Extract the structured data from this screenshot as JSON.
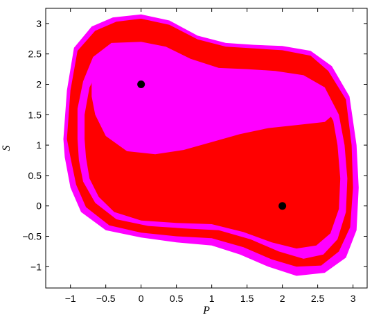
{
  "chart_data": {
    "type": "heatmap",
    "title": "",
    "xlabel": "P",
    "ylabel": "S",
    "xlim": [
      -1.35,
      3.2
    ],
    "ylim": [
      -1.35,
      3.25
    ],
    "x_ticks": [
      "−1",
      "−0.5",
      "0",
      "0.5",
      "1",
      "1.5",
      "2",
      "2.5",
      "3"
    ],
    "x_tick_values": [
      -1,
      -0.5,
      0,
      0.5,
      1,
      1.5,
      2,
      2.5,
      3
    ],
    "y_ticks": [
      "−1",
      "−0.5",
      "0",
      "0.5",
      "1",
      "1.5",
      "2",
      "2.5",
      "3"
    ],
    "y_tick_values": [
      -1,
      -0.5,
      0,
      0.5,
      1,
      1.5,
      2,
      2.5,
      3
    ],
    "grid": false,
    "colors": {
      "basin_a": "#ff00ff",
      "basin_b": "#ff0000",
      "points": "#000000"
    },
    "regions": [
      {
        "color": "#ff00ff",
        "outline": [
          [
            -1.1,
            1.1
          ],
          [
            -1.05,
            1.9
          ],
          [
            -0.95,
            2.6
          ],
          [
            -0.7,
            2.95
          ],
          [
            -0.4,
            3.1
          ],
          [
            0.0,
            3.15
          ],
          [
            0.4,
            3.05
          ],
          [
            0.8,
            2.8
          ],
          [
            1.2,
            2.68
          ],
          [
            1.6,
            2.65
          ],
          [
            2.0,
            2.63
          ],
          [
            2.4,
            2.55
          ],
          [
            2.7,
            2.3
          ],
          [
            2.95,
            1.8
          ],
          [
            3.05,
            1.0
          ],
          [
            3.08,
            0.3
          ],
          [
            3.05,
            -0.4
          ],
          [
            2.9,
            -0.85
          ],
          [
            2.6,
            -1.1
          ],
          [
            2.2,
            -1.15
          ],
          [
            1.8,
            -1.0
          ],
          [
            1.4,
            -0.8
          ],
          [
            1.0,
            -0.65
          ],
          [
            0.5,
            -0.6
          ],
          [
            0.0,
            -0.52
          ],
          [
            -0.5,
            -0.4
          ],
          [
            -0.85,
            -0.1
          ],
          [
            -1.0,
            0.3
          ],
          [
            -1.08,
            0.8
          ]
        ]
      },
      {
        "color": "#ff0000",
        "outline": [
          [
            -1.05,
            1.1
          ],
          [
            -1.0,
            1.9
          ],
          [
            -0.9,
            2.55
          ],
          [
            -0.65,
            2.88
          ],
          [
            -0.35,
            3.03
          ],
          [
            0.0,
            3.08
          ],
          [
            0.4,
            2.98
          ],
          [
            0.8,
            2.74
          ],
          [
            1.2,
            2.62
          ],
          [
            1.6,
            2.59
          ],
          [
            2.0,
            2.56
          ],
          [
            2.4,
            2.47
          ],
          [
            2.65,
            2.22
          ],
          [
            2.9,
            1.75
          ],
          [
            2.98,
            1.0
          ],
          [
            3.0,
            0.3
          ],
          [
            2.96,
            -0.35
          ],
          [
            2.8,
            -0.75
          ],
          [
            2.55,
            -0.98
          ],
          [
            2.2,
            -1.0
          ],
          [
            1.85,
            -0.88
          ],
          [
            1.45,
            -0.68
          ],
          [
            1.0,
            -0.53
          ],
          [
            0.5,
            -0.5
          ],
          [
            0.0,
            -0.44
          ],
          [
            -0.45,
            -0.32
          ],
          [
            -0.78,
            -0.02
          ],
          [
            -0.92,
            0.35
          ],
          [
            -1.0,
            0.8
          ]
        ]
      },
      {
        "color": "#ff00ff",
        "outline": [
          [
            -0.9,
            1.1
          ],
          [
            -0.9,
            1.6
          ],
          [
            -0.82,
            2.05
          ],
          [
            -0.68,
            2.45
          ],
          [
            -0.42,
            2.68
          ],
          [
            0.0,
            2.7
          ],
          [
            0.35,
            2.62
          ],
          [
            0.7,
            2.42
          ],
          [
            1.1,
            2.27
          ],
          [
            1.5,
            2.25
          ],
          [
            1.9,
            2.22
          ],
          [
            2.3,
            2.15
          ],
          [
            2.6,
            1.95
          ],
          [
            2.8,
            1.5
          ],
          [
            2.88,
            1.0
          ],
          [
            2.92,
            0.45
          ],
          [
            2.9,
            -0.1
          ],
          [
            2.78,
            -0.55
          ],
          [
            2.58,
            -0.8
          ],
          [
            2.3,
            -0.87
          ],
          [
            1.95,
            -0.75
          ],
          [
            1.55,
            -0.55
          ],
          [
            1.1,
            -0.4
          ],
          [
            0.6,
            -0.37
          ],
          [
            0.1,
            -0.33
          ],
          [
            -0.35,
            -0.22
          ],
          [
            -0.65,
            0.05
          ],
          [
            -0.82,
            0.4
          ],
          [
            -0.88,
            0.75
          ]
        ]
      },
      {
        "color": "#ff0000",
        "outline": [
          [
            -0.8,
            1.1
          ],
          [
            -0.8,
            1.5
          ],
          [
            -0.73,
            1.95
          ],
          [
            -0.58,
            2.28
          ],
          [
            -0.3,
            2.5
          ],
          [
            0.0,
            2.52
          ],
          [
            0.35,
            2.43
          ],
          [
            0.7,
            2.25
          ],
          [
            1.1,
            2.1
          ],
          [
            1.5,
            2.08
          ],
          [
            1.9,
            2.05
          ],
          [
            2.3,
            1.96
          ],
          [
            2.55,
            1.75
          ],
          [
            2.72,
            1.4
          ],
          [
            2.78,
            1.0
          ],
          [
            2.82,
            0.45
          ],
          [
            2.8,
            -0.05
          ],
          [
            2.68,
            -0.45
          ],
          [
            2.48,
            -0.65
          ],
          [
            2.2,
            -0.7
          ],
          [
            1.85,
            -0.6
          ],
          [
            1.45,
            -0.43
          ],
          [
            1.0,
            -0.3
          ],
          [
            0.5,
            -0.28
          ],
          [
            0.0,
            -0.24
          ],
          [
            -0.38,
            -0.1
          ],
          [
            -0.6,
            0.15
          ],
          [
            -0.73,
            0.45
          ],
          [
            -0.78,
            0.8
          ]
        ]
      },
      {
        "color": "#ff00ff",
        "outline": [
          [
            -0.7,
            2.0
          ],
          [
            -0.65,
            2.3
          ],
          [
            -0.45,
            2.53
          ],
          [
            -0.1,
            2.6
          ],
          [
            0.3,
            2.55
          ],
          [
            0.7,
            2.3
          ],
          [
            1.1,
            2.2
          ],
          [
            1.6,
            2.2
          ],
          [
            2.0,
            2.15
          ],
          [
            2.4,
            2.05
          ],
          [
            2.62,
            1.8
          ],
          [
            2.72,
            1.5
          ],
          [
            2.6,
            1.38
          ],
          [
            2.2,
            1.33
          ],
          [
            1.8,
            1.28
          ],
          [
            1.4,
            1.18
          ],
          [
            1.0,
            1.05
          ],
          [
            0.6,
            0.92
          ],
          [
            0.2,
            0.85
          ],
          [
            -0.2,
            0.9
          ],
          [
            -0.5,
            1.15
          ],
          [
            -0.65,
            1.5
          ],
          [
            -0.7,
            1.8
          ]
        ]
      }
    ],
    "points": [
      {
        "x": 0,
        "y": 2
      },
      {
        "x": 2,
        "y": 0
      }
    ]
  }
}
